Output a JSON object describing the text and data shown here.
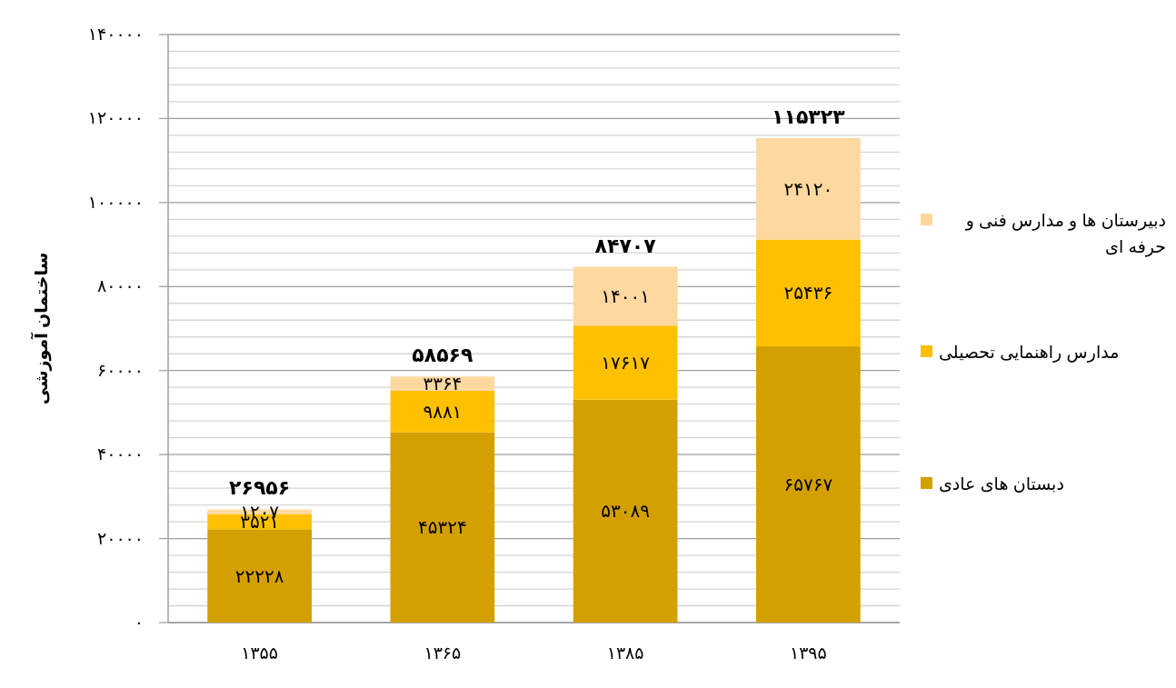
{
  "chart_data": {
    "type": "bar",
    "stacked": true,
    "categories": [
      "۱۳۵۵",
      "۱۳۶۵",
      "۱۳۸۵",
      "۱۳۹۵"
    ],
    "ylabel": "ساختمان آموزشی",
    "ylim": [
      0,
      140000
    ],
    "yticks": [
      {
        "value": 0,
        "label": "۰"
      },
      {
        "value": 4000,
        "label": null
      },
      {
        "value": 8000,
        "label": null
      },
      {
        "value": 12000,
        "label": null
      },
      {
        "value": 16000,
        "label": null
      },
      {
        "value": 20000,
        "label": "۲۰۰۰۰"
      },
      {
        "value": 24000,
        "label": null
      },
      {
        "value": 28000,
        "label": null
      },
      {
        "value": 32000,
        "label": null
      },
      {
        "value": 36000,
        "label": null
      },
      {
        "value": 40000,
        "label": "۴۰۰۰۰"
      },
      {
        "value": 44000,
        "label": null
      },
      {
        "value": 48000,
        "label": null
      },
      {
        "value": 52000,
        "label": null
      },
      {
        "value": 56000,
        "label": null
      },
      {
        "value": 60000,
        "label": "۶۰۰۰۰"
      },
      {
        "value": 64000,
        "label": null
      },
      {
        "value": 68000,
        "label": null
      },
      {
        "value": 72000,
        "label": null
      },
      {
        "value": 76000,
        "label": null
      },
      {
        "value": 80000,
        "label": "۸۰۰۰۰"
      },
      {
        "value": 84000,
        "label": null
      },
      {
        "value": 88000,
        "label": null
      },
      {
        "value": 92000,
        "label": null
      },
      {
        "value": 96000,
        "label": null
      },
      {
        "value": 100000,
        "label": "۱۰۰۰۰۰"
      },
      {
        "value": 104000,
        "label": null
      },
      {
        "value": 108000,
        "label": null
      },
      {
        "value": 112000,
        "label": null
      },
      {
        "value": 116000,
        "label": null
      },
      {
        "value": 120000,
        "label": "۱۲۰۰۰۰"
      },
      {
        "value": 124000,
        "label": null
      },
      {
        "value": 128000,
        "label": null
      },
      {
        "value": 132000,
        "label": null
      },
      {
        "value": 136000,
        "label": null
      },
      {
        "value": 140000,
        "label": "۱۴۰۰۰۰"
      }
    ],
    "grid": "y",
    "legend": "right",
    "series": [
      {
        "name": "دبستان های عادی",
        "color": "#d4a000",
        "values": [
          22228,
          45324,
          53089,
          65767
        ],
        "value_labels": [
          "۲۲۲۲۸",
          "۴۵۳۲۴",
          "۵۳۰۸۹",
          "۶۵۷۶۷"
        ]
      },
      {
        "name": "مدارس راهنمایی تحصیلی",
        "color": "#ffc000",
        "values": [
          3521,
          9881,
          17617,
          25436
        ],
        "value_labels": [
          "۳۵۲۱",
          "۹۸۸۱",
          "۱۷۶۱۷",
          "۲۵۴۳۶"
        ]
      },
      {
        "name": "دبیرستان ها و مدارس فنی و حرفه ای",
        "color": "#ffd8a0",
        "values": [
          1207,
          3364,
          14001,
          24120
        ],
        "value_labels": [
          "۱۲۰۷",
          "۳۳۶۴",
          "۱۴۰۰۱",
          "۲۴۱۲۰"
        ]
      }
    ],
    "totals": [
      "۲۶۹۵۶",
      "۵۸۵۶۹",
      "۸۴۷۰۷",
      "۱۱۵۳۲۳"
    ]
  }
}
